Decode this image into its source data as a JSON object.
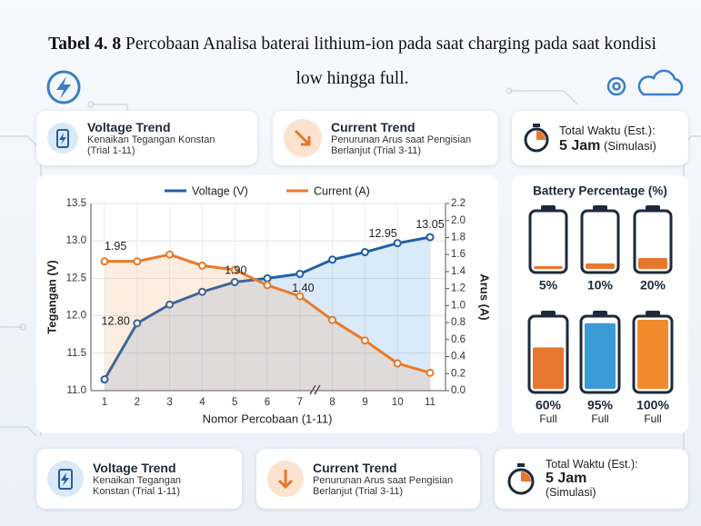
{
  "title": {
    "label": "Tabel 4. 8",
    "text": "Percobaan Analisa baterai lithium-ion pada saat charging pada saat kondisi low hingga full."
  },
  "top_cards": [
    {
      "title": "Voltage Trend",
      "text": "Kenaikan Tegangan Konstan (Trial 1-11)"
    },
    {
      "title": "Current Trend",
      "text": "Penurunan Arus saat Pengisian Berlanjut (Trial 3-11)"
    },
    {
      "title": "Total Waktu (Est.):",
      "value": "5 Jam",
      "note": "(Simulasi)"
    }
  ],
  "bottom_cards": [
    {
      "title": "Voltage Trend",
      "text": "Kenaikan Tegangan Konstan (Trial 1-11)"
    },
    {
      "title": "Current Trend",
      "text": "Penurunan Arus saat Pengisian Berlanjut (Trial 3-11)"
    },
    {
      "title": "Total Waktu (Est.):",
      "value": "5 Jam",
      "note": "(Simulasi)"
    }
  ],
  "chart_data": [
    {
      "type": "line",
      "categories": [
        "1",
        "2",
        "3",
        "4",
        "5",
        "6",
        "7",
        "8",
        "9",
        "10",
        "11"
      ],
      "xlabel": "Nomor Percobaan (1-11)",
      "ylabel": "Tegangan (V)",
      "y2label": "Arus (A)",
      "ylim": [
        11,
        13.5
      ],
      "yticks": [
        {
          "value": 11,
          "label": "11.0"
        },
        11.5,
        {
          "value": 12,
          "label": "12.0"
        },
        12.5,
        {
          "value": 13,
          "label": "13.0"
        },
        13.5
      ],
      "y2lim": [
        0,
        2.2
      ],
      "y2ticks": [
        {
          "value": 0,
          "label": "0.0"
        },
        0.2,
        0.4,
        0.6,
        0.8,
        {
          "value": 1,
          "label": "1.0"
        },
        1.2,
        1.4,
        1.6,
        1.8,
        {
          "value": 2,
          "label": "2.0"
        },
        2.2
      ],
      "grid": true,
      "legend": "top",
      "series": [
        {
          "name": "Voltage (V)",
          "color": "#1f5fa8",
          "values": [
            11.15,
            11.9,
            12.15,
            12.32,
            12.45,
            12.5,
            12.56,
            12.75,
            12.85,
            12.97,
            13.05
          ]
        },
        {
          "name": "Current (A)",
          "color": "#e87a2a",
          "axis": "y2",
          "values": [
            1.52,
            1.52,
            1.6,
            1.47,
            1.42,
            1.24,
            1.11,
            0.83,
            0.59,
            0.32,
            0.21
          ]
        }
      ],
      "annotations": [
        {
          "text": "1.95",
          "x": 1.34,
          "y": 12.92
        },
        {
          "text": "12.80",
          "x": 1.34,
          "y": 11.92
        },
        {
          "text": "1.90",
          "x": 5.03,
          "y": 12.6
        },
        {
          "text": "1.40",
          "x": 7.1,
          "y": 12.36
        },
        {
          "text": "12.95",
          "x": 9.55,
          "y": 13.09
        },
        {
          "text": "13.05",
          "x": 11,
          "y": 13.21
        }
      ]
    },
    {
      "type": "battery",
      "title": "Battery Percentage (%)",
      "ylim": [
        0,
        100
      ],
      "values": [
        5,
        10,
        20,
        60,
        95,
        100
      ],
      "value_labels": [
        "5%",
        "10%",
        "20%",
        "60%",
        "95%",
        "100%"
      ],
      "categories": [
        null,
        null,
        null,
        "Full",
        "Full",
        "Full"
      ],
      "colors": [
        "#e8772e",
        "#e8772e",
        "#e8772e",
        "#e8772e",
        "#3a9bd5",
        "#f08a2c"
      ]
    }
  ]
}
